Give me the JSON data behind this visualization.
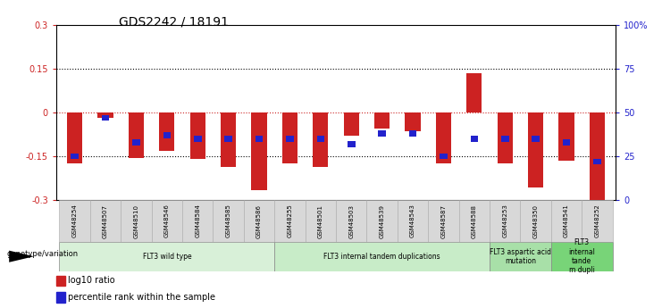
{
  "title": "GDS2242 / 18191",
  "samples": [
    "GSM48254",
    "GSM48507",
    "GSM48510",
    "GSM48546",
    "GSM48584",
    "GSM48585",
    "GSM48586",
    "GSM48255",
    "GSM48501",
    "GSM48503",
    "GSM48539",
    "GSM48543",
    "GSM48587",
    "GSM48588",
    "GSM48253",
    "GSM48350",
    "GSM48541",
    "GSM48252"
  ],
  "log10_ratio": [
    -0.175,
    -0.02,
    -0.155,
    -0.13,
    -0.16,
    -0.185,
    -0.265,
    -0.175,
    -0.185,
    -0.08,
    -0.055,
    -0.065,
    -0.175,
    0.135,
    -0.175,
    -0.255,
    -0.165,
    -0.305
  ],
  "percentile_rank": [
    25,
    47,
    33,
    37,
    35,
    35,
    35,
    35,
    35,
    32,
    38,
    38,
    25,
    35,
    35,
    35,
    33,
    22
  ],
  "ylim": [
    -0.3,
    0.3
  ],
  "yticks_left": [
    -0.3,
    -0.15,
    0,
    0.15,
    0.3
  ],
  "yticks_right": [
    0,
    25,
    50,
    75,
    100
  ],
  "right_ylim": [
    0,
    100
  ],
  "groups": [
    {
      "label": "FLT3 wild type",
      "start": 0,
      "end": 7,
      "color": "#d8f0d8"
    },
    {
      "label": "FLT3 internal tandem duplications",
      "start": 7,
      "end": 14,
      "color": "#c8ecc8"
    },
    {
      "label": "FLT3 aspartic acid\nmutation",
      "start": 14,
      "end": 16,
      "color": "#a8e0a8"
    },
    {
      "label": "FLT3\ninternal\ntande\nm dupli",
      "start": 16,
      "end": 18,
      "color": "#78d478"
    }
  ],
  "bar_color_red": "#cc2222",
  "bar_color_blue": "#2222cc",
  "dotted_line_color": "#000000",
  "red_dotted_color": "#cc2222",
  "background_color": "#ffffff",
  "legend_label_red": "log10 ratio",
  "legend_label_blue": "percentile rank within the sample",
  "genotype_label": "genotype/variation",
  "bar_width": 0.5,
  "blue_bar_width": 0.25
}
